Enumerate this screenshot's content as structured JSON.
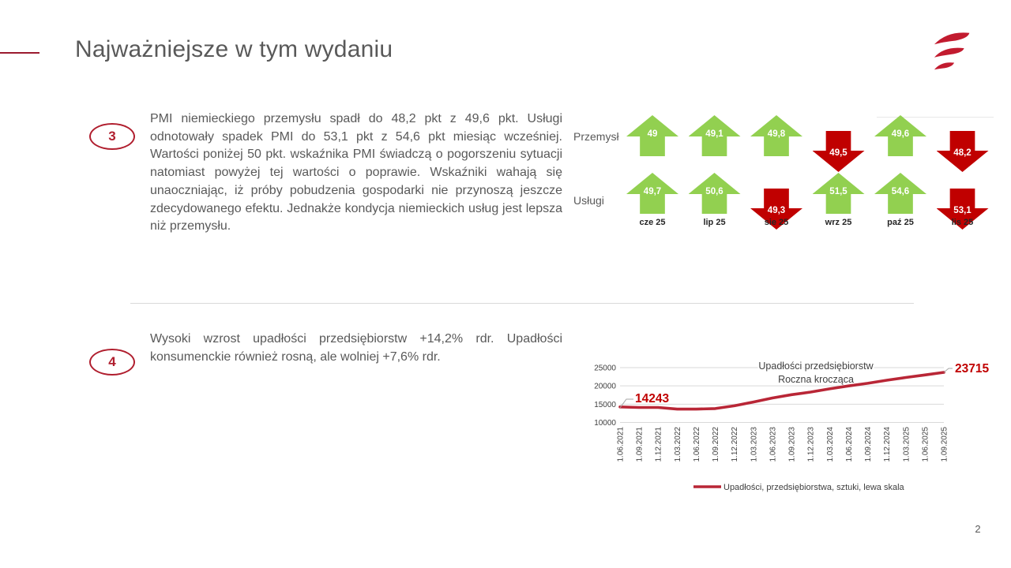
{
  "slide": {
    "title": "Najważniejsze w tym wydaniu",
    "page_number": "2"
  },
  "items": [
    {
      "number": "3",
      "text": "PMI niemieckiego przemysłu spadł do 48,2 pkt z 49,6 pkt. Usługi odnotowały spadek PMI do 53,1 pkt z 54,6 pkt miesiąc wcześniej. Wartości poniżej 50 pkt. wskaźnika PMI świadczą o pogorszeniu sytuacji natomiast powyżej tej wartości o poprawie. Wskaźniki wahają się unaoczniając, iż próby pobudzenia gospodarki nie przynoszą jeszcze zdecydowanego efektu. Jednakże kondycja niemieckich usług jest lepsza niż przemysłu."
    },
    {
      "number": "4",
      "text": "Wysoki wzrost upadłości przedsiębiorstw +14,2% rdr. Upadłości konsumenckie również rosną, ale wolniej +7,6% rdr."
    }
  ],
  "chart_data": [
    {
      "type": "table",
      "description": "PMI indicator arrows, green up / red down",
      "categories": [
        "cze 25",
        "lip 25",
        "sie 25",
        "wrz 25",
        "paź 25",
        "lis 25"
      ],
      "series": [
        {
          "name": "Przemysł",
          "values": [
            49,
            49.1,
            49.8,
            49.5,
            49.6,
            48.2
          ],
          "labels": [
            "49",
            "49,1",
            "49,8",
            "49,5",
            "49,6",
            "48,2"
          ],
          "directions": [
            "up",
            "up",
            "up",
            "down",
            "up",
            "down"
          ]
        },
        {
          "name": "Usługi",
          "values": [
            49.7,
            50.6,
            49.3,
            51.5,
            54.6,
            53.1
          ],
          "labels": [
            "49,7",
            "50,6",
            "49,3",
            "51,5",
            "54,6",
            "53,1"
          ],
          "directions": [
            "up",
            "up",
            "down",
            "up",
            "up",
            "down"
          ]
        }
      ],
      "colors": {
        "up": "#92d050",
        "down": "#c00000"
      }
    },
    {
      "type": "line",
      "title": "Upadłości przedsiębiorstw",
      "subtitle": "Roczna krocząca",
      "x": [
        "1.06.2021",
        "1.09.2021",
        "1.12.2021",
        "1.03.2022",
        "1.06.2022",
        "1.09.2022",
        "1.12.2022",
        "1.03.2023",
        "1.06.2023",
        "1.09.2023",
        "1.12.2023",
        "1.03.2024",
        "1.06.2024",
        "1.09.2024",
        "1.12.2024",
        "1.03.2025",
        "1.06.2025",
        "1.09.2025"
      ],
      "series": [
        {
          "name": "Upadłości, przedsiębiorstwa, sztuki, lewa skala",
          "values": [
            14243,
            14100,
            14100,
            13650,
            13650,
            13800,
            14550,
            15600,
            16700,
            17600,
            18300,
            19200,
            20000,
            20700,
            21550,
            22300,
            23000,
            23715
          ]
        }
      ],
      "ylim": [
        10000,
        25000
      ],
      "yticks": [
        10000,
        15000,
        20000,
        25000
      ],
      "first_point_label": "14243",
      "last_point_label": "23715",
      "line_color": "#b92636",
      "label_color": "#c00000",
      "grid_color": "#d9d9d9",
      "legend_position": "bottom",
      "grid": "horizontal"
    }
  ],
  "logo_color": "#c21b2f"
}
